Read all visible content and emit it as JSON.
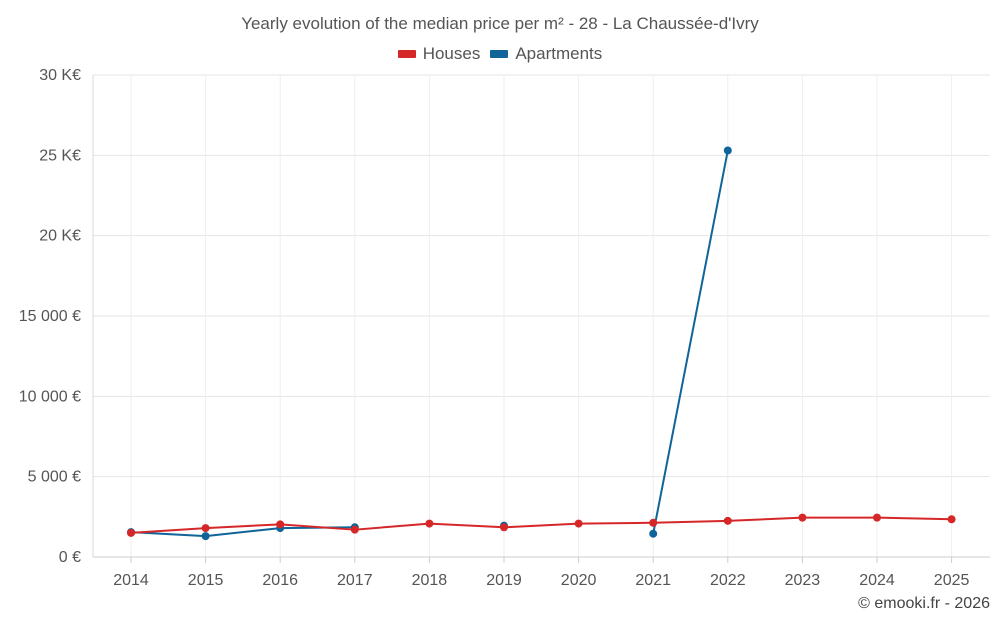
{
  "chart_data": {
    "type": "line",
    "title": "Yearly evolution of the median price per m² - 28 - La Chaussée-d'Ivry",
    "categories": [
      "2014",
      "2015",
      "2016",
      "2017",
      "2018",
      "2019",
      "2020",
      "2021",
      "2022",
      "2023",
      "2024",
      "2025"
    ],
    "ylim": [
      0,
      30000
    ],
    "y_ticks": [
      {
        "value": 0,
        "label": "0 €"
      },
      {
        "value": 5000,
        "label": "5 000 €"
      },
      {
        "value": 10000,
        "label": "10 000 €"
      },
      {
        "value": 15000,
        "label": "15 000 €"
      },
      {
        "value": 20000,
        "label": "20 K€"
      },
      {
        "value": 25000,
        "label": "25 K€"
      },
      {
        "value": 30000,
        "label": "30 K€"
      }
    ],
    "grid": true,
    "legend_position": "top-center",
    "series": [
      {
        "name": "Houses",
        "color": "#d62728",
        "values": [
          1500,
          1800,
          2030,
          1700,
          2080,
          1850,
          2080,
          2130,
          2250,
          2450,
          2450,
          2350
        ],
        "connect": [
          true,
          true,
          true,
          true,
          true,
          true,
          true,
          true,
          true,
          true,
          true,
          true
        ]
      },
      {
        "name": "Apartments",
        "color": "#0f6499",
        "values": [
          1550,
          1300,
          1800,
          1850,
          null,
          1950,
          null,
          1450,
          25300,
          null,
          null,
          null
        ]
      }
    ]
  },
  "legend": {
    "houses_label": "Houses",
    "apartments_label": "Apartments",
    "houses_color": "#d62728",
    "apartments_color": "#0f6499"
  },
  "footer": {
    "copyright": "© emooki.fr - 2026"
  }
}
